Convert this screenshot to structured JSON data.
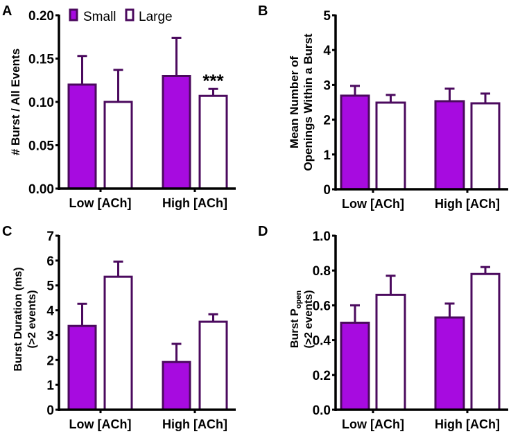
{
  "colors": {
    "small_fill": "#a70be0",
    "large_fill": "#ffffff",
    "stroke": "#4b0a5e",
    "axis": "#000000"
  },
  "chart_data": [
    {
      "panel": "A",
      "type": "bar",
      "categories": [
        "Low [ACh]",
        "High [ACh]"
      ],
      "ylabel": "# Burst / All Events",
      "ylim": [
        0,
        0.2
      ],
      "yticks": [
        "0.00",
        "0.05",
        "0.10",
        "0.15",
        "0.20"
      ],
      "ytick_values": [
        0,
        0.05,
        0.1,
        0.15,
        0.2
      ],
      "legend": {
        "placement": "top-left",
        "entries": [
          "Small",
          "Large"
        ]
      },
      "series": [
        {
          "name": "Small",
          "values": [
            0.12,
            0.13
          ],
          "error_upper": [
            0.153,
            0.174
          ]
        },
        {
          "name": "Large",
          "values": [
            0.1,
            0.107
          ],
          "error_upper": [
            0.137,
            0.115
          ]
        }
      ],
      "annotations": [
        {
          "text": "***",
          "series": "Large",
          "category": "High [ACh]"
        }
      ]
    },
    {
      "panel": "B",
      "type": "bar",
      "categories": [
        "Low [ACh]",
        "High [ACh]"
      ],
      "ylabel_lines": [
        "Mean Number of",
        "Openings Within a Burst"
      ],
      "ylim": [
        0,
        5
      ],
      "yticks": [
        "0",
        "1",
        "2",
        "3",
        "4",
        "5"
      ],
      "ytick_values": [
        0,
        1,
        2,
        3,
        4,
        5
      ],
      "series": [
        {
          "name": "Small",
          "values": [
            2.69,
            2.53
          ],
          "error_upper": [
            2.97,
            2.89
          ]
        },
        {
          "name": "Large",
          "values": [
            2.49,
            2.47
          ],
          "error_upper": [
            2.71,
            2.75
          ]
        }
      ]
    },
    {
      "panel": "C",
      "type": "bar",
      "categories": [
        "Low [ACh]",
        "High [ACh]"
      ],
      "ylabel_lines": [
        "Burst Duration (ms)",
        "(>2 events)"
      ],
      "ylim": [
        0,
        7
      ],
      "yticks": [
        "0",
        "1",
        "2",
        "3",
        "4",
        "5",
        "6",
        "7"
      ],
      "ytick_values": [
        0,
        1,
        2,
        3,
        4,
        5,
        6,
        7
      ],
      "series": [
        {
          "name": "Small",
          "values": [
            3.37,
            1.92
          ],
          "error_upper": [
            4.26,
            2.65
          ]
        },
        {
          "name": "Large",
          "values": [
            5.35,
            3.54
          ],
          "error_upper": [
            5.96,
            3.84
          ]
        }
      ]
    },
    {
      "panel": "D",
      "type": "bar",
      "categories": [
        "Low [ACh]",
        "High [ACh]"
      ],
      "ylabel_main": "Burst P",
      "ylabel_sub": "open",
      "ylabel_line2": "(>2 events)",
      "ylim": [
        0,
        1.0
      ],
      "yticks": [
        "0.0",
        "0.2",
        "0.4",
        "0.6",
        "0.8",
        "1.0"
      ],
      "ytick_values": [
        0,
        0.2,
        0.4,
        0.6,
        0.8,
        1.0
      ],
      "series": [
        {
          "name": "Small",
          "values": [
            0.5,
            0.53
          ],
          "error_upper": [
            0.6,
            0.61
          ]
        },
        {
          "name": "Large",
          "values": [
            0.66,
            0.78
          ],
          "error_upper": [
            0.77,
            0.82
          ]
        }
      ]
    }
  ]
}
